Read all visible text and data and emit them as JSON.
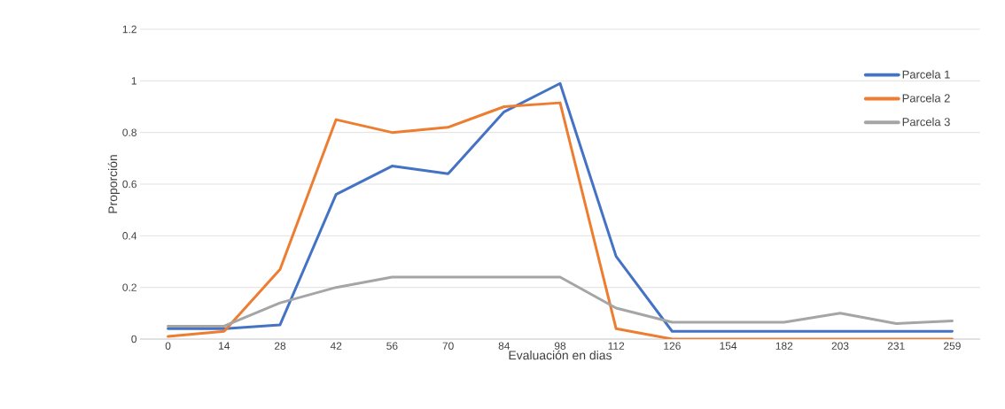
{
  "chart_data": {
    "type": "line",
    "xlabel": "Evaluación en dias",
    "ylabel": "Proporción",
    "categories": [
      "0",
      "14",
      "28",
      "42",
      "56",
      "70",
      "84",
      "98",
      "112",
      "126",
      "154",
      "182",
      "203",
      "231",
      "259"
    ],
    "series": [
      {
        "name": "Parcela 1",
        "color": "#4472c4",
        "values": [
          0.04,
          0.04,
          0.055,
          0.56,
          0.67,
          0.64,
          0.88,
          0.99,
          0.32,
          0.03,
          0.03,
          0.03,
          0.03,
          0.03,
          0.03
        ]
      },
      {
        "name": "Parcela 2",
        "color": "#ed7d31",
        "values": [
          0.01,
          0.03,
          0.27,
          0.85,
          0.8,
          0.82,
          0.9,
          0.915,
          0.04,
          0,
          0,
          0,
          0,
          0,
          0
        ]
      },
      {
        "name": "Parcela 3",
        "color": "#a5a5a5",
        "values": [
          0.05,
          0.05,
          0.14,
          0.2,
          0.24,
          0.24,
          0.24,
          0.24,
          0.12,
          0.065,
          0.065,
          0.065,
          0.1,
          0.06,
          0.07
        ]
      }
    ],
    "ylim": [
      0,
      1.2
    ],
    "yticks": [
      0,
      0.2,
      0.4,
      0.6,
      0.8,
      1,
      1.2
    ],
    "grid": "y",
    "legend": "top right",
    "marker": "none",
    "line_style": "solid"
  }
}
